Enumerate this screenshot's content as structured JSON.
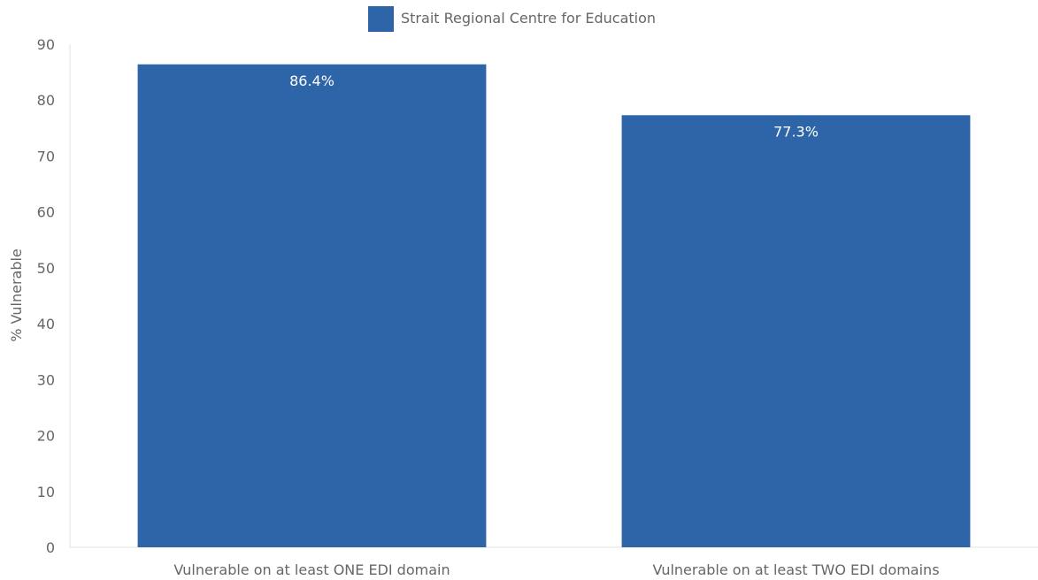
{
  "chart_data": {
    "type": "bar",
    "categories": [
      "Vulnerable on at least ONE EDI domain",
      "Vulnerable on at least TWO EDI domains"
    ],
    "series": [
      {
        "name": "Strait Regional Centre for Education",
        "values": [
          86.4,
          77.3
        ],
        "labels": [
          "86.4%",
          "77.3%"
        ],
        "color": "#2e64a8"
      }
    ],
    "title": "",
    "xlabel": "",
    "ylabel": "% Vulnerable",
    "ylim": [
      0,
      90
    ],
    "yticks": [
      0,
      10,
      20,
      30,
      40,
      50,
      60,
      70,
      80,
      90
    ],
    "grid": false,
    "legend_position": "top-center"
  }
}
